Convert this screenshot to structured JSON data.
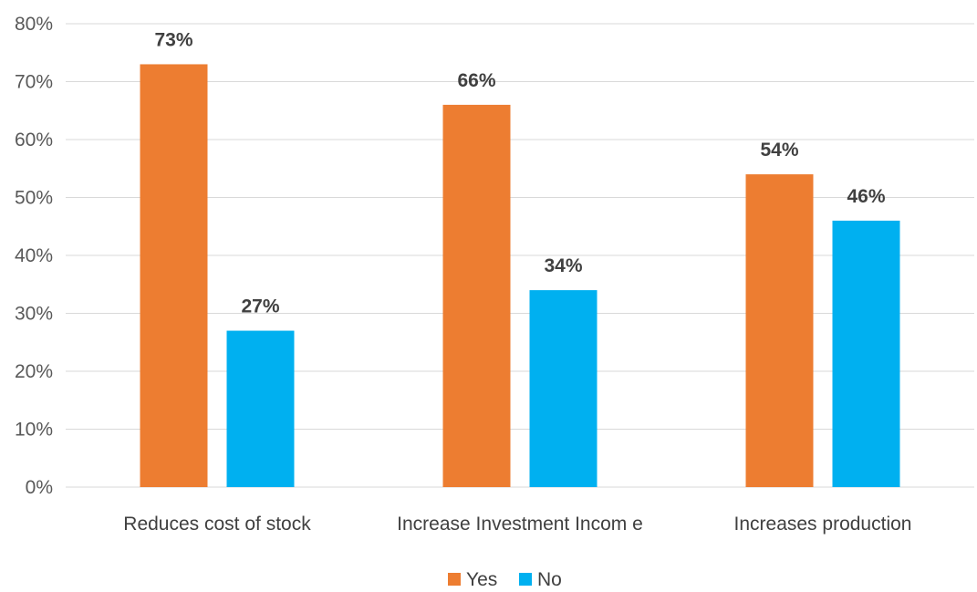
{
  "chart_data": {
    "type": "bar",
    "categories": [
      "Reduces cost of stock",
      "Increase Investment Incom e",
      "Increases production"
    ],
    "series": [
      {
        "name": "Yes",
        "values": [
          73,
          66,
          54
        ],
        "labels": [
          "73%",
          "66%",
          "54%"
        ],
        "color": "#ED7D31"
      },
      {
        "name": "No",
        "values": [
          27,
          34,
          46
        ],
        "labels": [
          "27%",
          "34%",
          "46%"
        ],
        "color": "#00B0F0"
      }
    ],
    "ylim": [
      0,
      80
    ],
    "yticks": [
      0,
      10,
      20,
      30,
      40,
      50,
      60,
      70,
      80
    ],
    "ytick_labels": [
      "0%",
      "10%",
      "20%",
      "30%",
      "40%",
      "50%",
      "60%",
      "70%",
      "80%"
    ],
    "title": "",
    "xlabel": "",
    "ylabel": "",
    "grid": true,
    "legend": "bottom-center"
  }
}
